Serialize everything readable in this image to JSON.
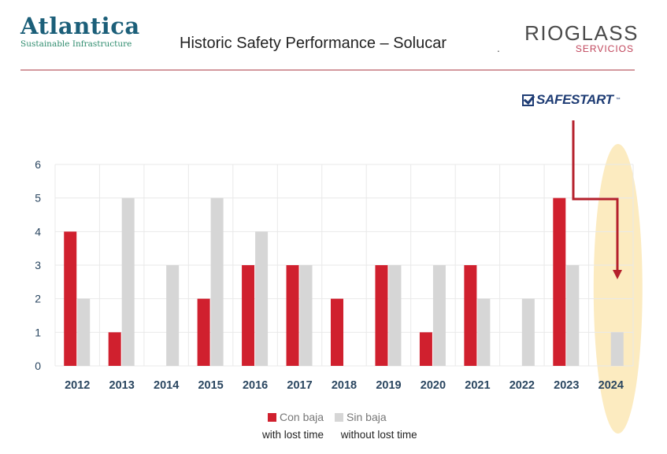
{
  "header": {
    "title": "Historic Safety Performance – Solucar",
    "left_logo": {
      "name": "Atlantica",
      "tagline": "Sustainable Infrastructure"
    },
    "right_logo": {
      "name": "RIOGLASS",
      "sub": "SERVICIOS"
    },
    "separator_mark": "."
  },
  "safestart": {
    "label": "SAFESTART",
    "tm": "™"
  },
  "colors": {
    "con_baja": "#d0202e",
    "sin_baja": "#d6d6d6",
    "highlight": "#fbe7b5",
    "arrow": "#b5202c",
    "axis_text": "#2a4660",
    "grid": "#e9e9e9"
  },
  "chart_data": {
    "type": "bar",
    "title": "Historic Safety Performance – Solucar",
    "categories": [
      "2012",
      "2013",
      "2014",
      "2015",
      "2016",
      "2017",
      "2018",
      "2019",
      "2020",
      "2021",
      "2022",
      "2023",
      "2024"
    ],
    "series": [
      {
        "name": "Con baja",
        "values": [
          4,
          1,
          0,
          2,
          3,
          3,
          2,
          3,
          1,
          3,
          0,
          5,
          0
        ]
      },
      {
        "name": "Sin baja",
        "values": [
          2,
          5,
          3,
          5,
          4,
          3,
          0,
          3,
          3,
          2,
          2,
          3,
          1
        ]
      }
    ],
    "ylim": [
      0,
      6
    ],
    "yticks": [
      "0",
      "1",
      "2",
      "3",
      "4",
      "5",
      "6"
    ],
    "xlabel": "",
    "ylabel": "",
    "grid": true,
    "legend": "bottom-center",
    "highlighted_category": "2024",
    "annotation": "SAFESTART program introduced at end of 2023, arrow pointing into 2024"
  },
  "legend": {
    "items": [
      {
        "label": "Con baja",
        "color": "#d0202e"
      },
      {
        "label": "Sin baja",
        "color": "#d6d6d6"
      }
    ],
    "translations": [
      "with lost time",
      "without lost time"
    ]
  }
}
